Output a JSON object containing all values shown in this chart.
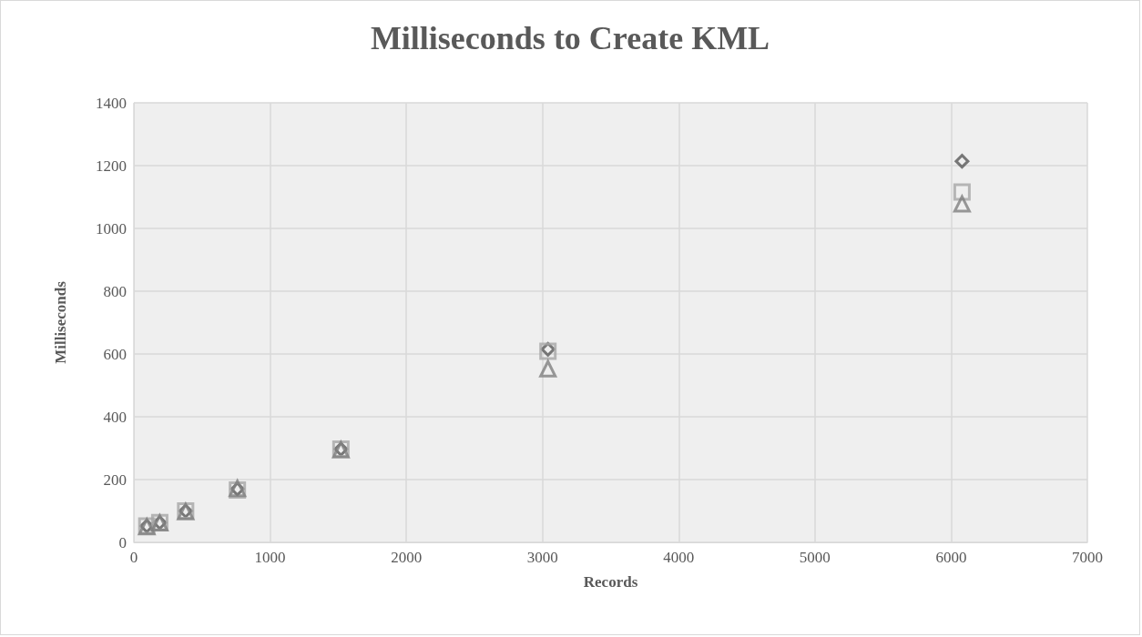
{
  "chart_data": {
    "type": "scatter",
    "title": "Milliseconds to Create KML",
    "xlabel": "Records",
    "ylabel": "Milliseconds",
    "x": [
      95,
      190,
      380,
      760,
      1520,
      3040,
      6080
    ],
    "series": [
      {
        "color": "#595959",
        "marker": "diamond",
        "values": [
          52,
          63,
          100,
          170,
          297,
          615,
          1214
        ]
      },
      {
        "color": "#a6a6a6",
        "marker": "square",
        "values": [
          52,
          63,
          100,
          167,
          297,
          609,
          1116
        ]
      },
      {
        "color": "#7f7f7f",
        "marker": "triangle",
        "values": [
          50,
          62,
          98,
          172,
          295,
          553,
          1078
        ]
      }
    ],
    "xlim": [
      0,
      7000
    ],
    "xticks": [
      0,
      1000,
      2000,
      3000,
      4000,
      5000,
      6000,
      7000
    ],
    "ylim": [
      0,
      1400
    ],
    "yticks": [
      0,
      200,
      400,
      600,
      800,
      1000,
      1200,
      1400
    ],
    "grid": true
  }
}
